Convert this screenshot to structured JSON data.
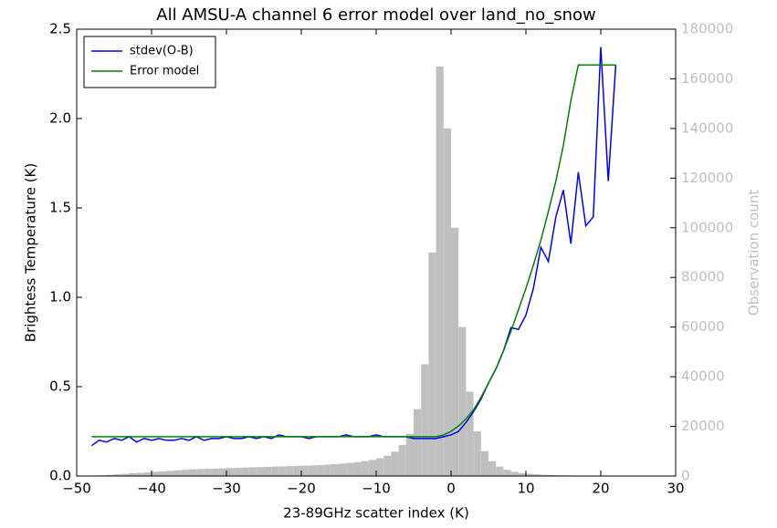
{
  "chart_data": {
    "type": "line",
    "title": "All AMSU-A channel 6 error model over land_no_snow",
    "xlabel": "23-89GHz scatter index (K)",
    "ylabel": "Brightess Temperature (K)",
    "y2label": "Observation count",
    "xlim": [
      -50,
      30
    ],
    "xticks": [
      {
        "value": -50,
        "label": "−50"
      },
      {
        "value": -40,
        "label": "−40"
      },
      {
        "value": -30,
        "label": "−30"
      },
      {
        "value": -20,
        "label": "−20"
      },
      {
        "value": -10,
        "label": "−10"
      },
      0,
      10,
      20,
      30
    ],
    "ylim": [
      0,
      2.5
    ],
    "yticks": [
      {
        "value": 0,
        "label": "0.0"
      },
      0.5,
      {
        "value": 1,
        "label": "1.0"
      },
      1.5,
      {
        "value": 2,
        "label": "2.0"
      },
      2.5
    ],
    "y2lim": [
      0,
      180000
    ],
    "y2ticks": [
      0,
      20000,
      40000,
      60000,
      80000,
      100000,
      120000,
      140000,
      160000,
      180000
    ],
    "legend": "upper left",
    "x": [
      -48,
      -47,
      -46,
      -45,
      -44,
      -43,
      -42,
      -41,
      -40,
      -39,
      -38,
      -37,
      -36,
      -35,
      -34,
      -33,
      -32,
      -31,
      -30,
      -29,
      -28,
      -27,
      -26,
      -25,
      -24,
      -23,
      -22,
      -21,
      -20,
      -19,
      -18,
      -17,
      -16,
      -15,
      -14,
      -13,
      -12,
      -11,
      -10,
      -9,
      -8,
      -7,
      -6,
      -5,
      -4,
      -3,
      -2,
      -1,
      0,
      1,
      2,
      3,
      4,
      5,
      6,
      7,
      8,
      9,
      10,
      11,
      12,
      13,
      14,
      15,
      16,
      17,
      18,
      19,
      20,
      21,
      22
    ],
    "series": [
      {
        "name": "stdev(O-B)",
        "color": "#0000ff",
        "values": [
          0.17,
          0.2,
          0.19,
          0.21,
          0.2,
          0.22,
          0.19,
          0.21,
          0.2,
          0.21,
          0.2,
          0.2,
          0.21,
          0.2,
          0.22,
          0.2,
          0.21,
          0.21,
          0.22,
          0.21,
          0.21,
          0.22,
          0.21,
          0.22,
          0.21,
          0.23,
          0.22,
          0.22,
          0.22,
          0.21,
          0.22,
          0.22,
          0.22,
          0.22,
          0.23,
          0.22,
          0.22,
          0.22,
          0.23,
          0.22,
          0.22,
          0.22,
          0.22,
          0.21,
          0.21,
          0.21,
          0.21,
          0.22,
          0.23,
          0.25,
          0.3,
          0.36,
          0.43,
          0.52,
          0.6,
          0.7,
          0.83,
          0.82,
          0.9,
          1.05,
          1.28,
          1.2,
          1.45,
          1.6,
          1.3,
          1.7,
          1.4,
          1.45,
          2.4,
          1.65,
          2.3
        ]
      },
      {
        "name": "Error model",
        "color": "#008000",
        "values": [
          0.22,
          0.22,
          0.22,
          0.22,
          0.22,
          0.22,
          0.22,
          0.22,
          0.22,
          0.22,
          0.22,
          0.22,
          0.22,
          0.22,
          0.22,
          0.22,
          0.22,
          0.22,
          0.22,
          0.22,
          0.22,
          0.22,
          0.22,
          0.22,
          0.22,
          0.22,
          0.22,
          0.22,
          0.22,
          0.22,
          0.22,
          0.22,
          0.22,
          0.22,
          0.22,
          0.22,
          0.22,
          0.22,
          0.22,
          0.22,
          0.22,
          0.22,
          0.22,
          0.22,
          0.22,
          0.22,
          0.22,
          0.23,
          0.25,
          0.28,
          0.32,
          0.37,
          0.44,
          0.52,
          0.6,
          0.7,
          0.81,
          0.93,
          1.05,
          1.18,
          1.32,
          1.48,
          1.65,
          1.85,
          2.1,
          2.3,
          2.3,
          2.3,
          2.3,
          2.3,
          2.3
        ]
      }
    ],
    "histogram": {
      "color": "#bfbfbf",
      "axis": "y2",
      "bins": [
        -48,
        -47,
        -46,
        -45,
        -44,
        -43,
        -42,
        -41,
        -40,
        -39,
        -38,
        -37,
        -36,
        -35,
        -34,
        -33,
        -32,
        -31,
        -30,
        -29,
        -28,
        -27,
        -26,
        -25,
        -24,
        -23,
        -22,
        -21,
        -20,
        -19,
        -18,
        -17,
        -16,
        -15,
        -14,
        -13,
        -12,
        -11,
        -10,
        -9,
        -8,
        -7,
        -6,
        -5,
        -4,
        -3,
        -2,
        -1,
        0,
        1,
        2,
        3,
        4,
        5,
        6,
        7,
        8,
        9,
        10,
        11,
        12,
        13,
        14,
        15,
        16,
        17,
        18,
        19,
        20
      ],
      "counts": [
        200,
        300,
        500,
        700,
        900,
        1100,
        1300,
        1500,
        1700,
        1900,
        2100,
        2300,
        2500,
        2700,
        2800,
        2900,
        3000,
        3100,
        3200,
        3300,
        3400,
        3500,
        3600,
        3700,
        3800,
        3900,
        4000,
        4100,
        4200,
        4300,
        4400,
        4600,
        4800,
        5000,
        5300,
        5600,
        6000,
        6500,
        7200,
        8200,
        9800,
        12500,
        17000,
        27000,
        45000,
        90000,
        165000,
        140000,
        100000,
        60000,
        34000,
        18000,
        10000,
        6000,
        3800,
        2500,
        1700,
        1200,
        900,
        700,
        500,
        400,
        300,
        250,
        200,
        150,
        100,
        80
      ]
    }
  }
}
